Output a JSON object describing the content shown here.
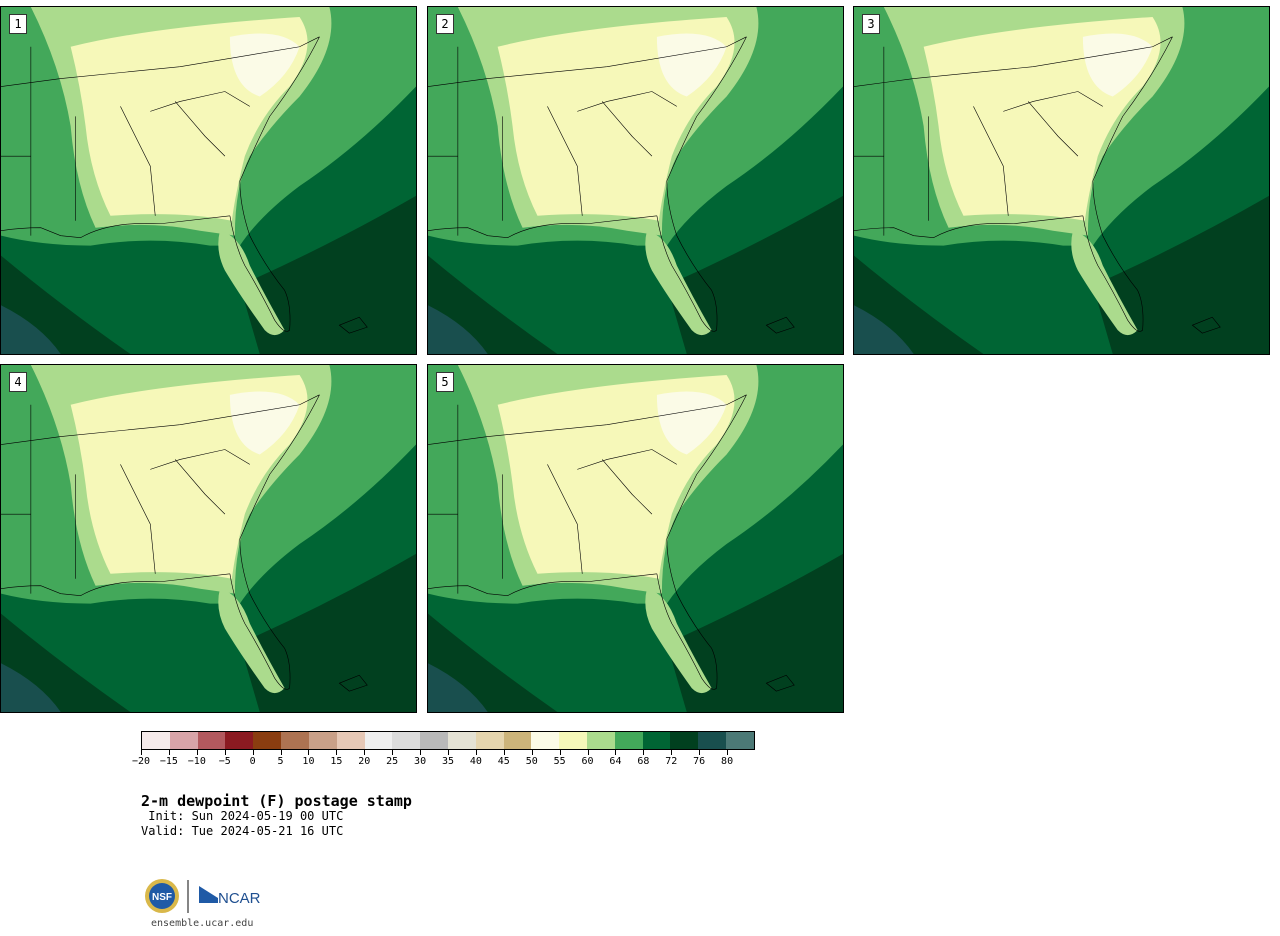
{
  "panels": [
    {
      "label": "1"
    },
    {
      "label": "2"
    },
    {
      "label": "3"
    },
    {
      "label": "4"
    },
    {
      "label": "5"
    }
  ],
  "colorbar": {
    "colors": [
      "#f5eaea",
      "#d8a4a8",
      "#b2595e",
      "#8b1a21",
      "#8a3d10",
      "#ad7352",
      "#c9a088",
      "#e6c8b6",
      "#efefef",
      "#dcdcdc",
      "#b9b9b9",
      "#e4e2d4",
      "#e5d5ae",
      "#ccb47a",
      "#fbfbe7",
      "#f6f8b9",
      "#abdb8d",
      "#43a85a",
      "#006534",
      "#01401f",
      "#194f4e",
      "#4c7976"
    ],
    "tick_labels": [
      "−20",
      "−15",
      "−10",
      "−5",
      "0",
      "5",
      "10",
      "15",
      "20",
      "25",
      "30",
      "35",
      "40",
      "45",
      "50",
      "55",
      "60",
      "64",
      "68",
      "72",
      "76",
      "80"
    ]
  },
  "title": "2-m dewpoint (F) postage stamp",
  "init": " Init: Sun 2024-05-19 00 UTC",
  "valid": "Valid: Tue 2024-05-21 16 UTC",
  "footer": {
    "site": "ensemble.ucar.edu",
    "nsf_logo": "NSF",
    "ncar_logo": "NCAR"
  }
}
